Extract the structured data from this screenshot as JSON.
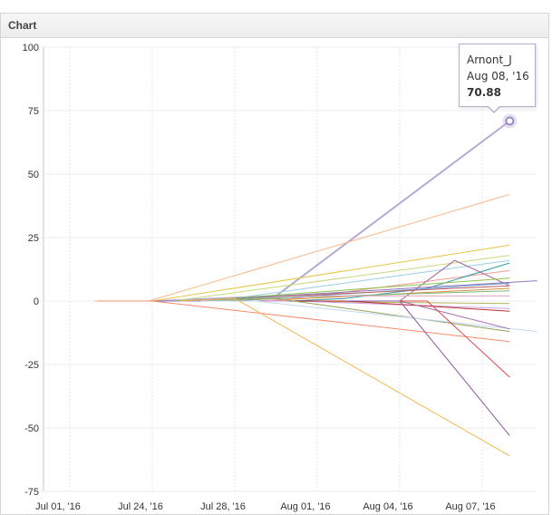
{
  "panel": {
    "title": "Chart"
  },
  "chart_data": {
    "type": "line",
    "title": "",
    "xlabel": "",
    "ylabel": "",
    "ylim": [
      -75,
      100
    ],
    "yticks": [
      100,
      75,
      50,
      25,
      0,
      -25,
      -50,
      -75
    ],
    "xticks": [
      "Jul 01, '16",
      "Jul 24, '16",
      "Jul 28, '16",
      "Aug 01, '16",
      "Aug 04, '16",
      "Aug 07, '16"
    ],
    "grid": true,
    "legend": "none",
    "series": [
      {
        "name": "Arnont_J",
        "color": "#b7a9d4",
        "width": 2,
        "points": [
          [
            "Jul 30, '16",
            2
          ],
          [
            "Aug 08, '16",
            70.88
          ]
        ]
      },
      {
        "color": "#f9b78a",
        "points": [
          [
            "Jul 23, '16",
            0
          ],
          [
            "Aug 08, '16",
            42
          ]
        ]
      },
      {
        "color": "#e8c54a",
        "points": [
          [
            "Jul 24, '16",
            0
          ],
          [
            "Aug 08, '16",
            22
          ]
        ]
      },
      {
        "color": "#c6d97c",
        "points": [
          [
            "Jul 25, '16",
            0
          ],
          [
            "Aug 08, '16",
            18
          ]
        ]
      },
      {
        "color": "#9ad0e6",
        "points": [
          [
            "Jul 27, '16",
            0
          ],
          [
            "Aug 08, '16",
            16
          ]
        ]
      },
      {
        "color": "#f19a8f",
        "points": [
          [
            "Jul 30, '16",
            0
          ],
          [
            "Aug 08, '16",
            12
          ]
        ]
      },
      {
        "color": "#2e9aa6",
        "points": [
          [
            "Aug 02, '16",
            1
          ],
          [
            "Aug 05, '16",
            5
          ],
          [
            "Aug 08, '16",
            15
          ]
        ]
      },
      {
        "color": "#a35fa0",
        "points": [
          [
            "Aug 04, '16",
            0
          ],
          [
            "Aug 06, '16",
            16
          ],
          [
            "Aug 08, '16",
            6
          ]
        ]
      },
      {
        "color": "#8bc34a",
        "points": [
          [
            "Jul 26, '16",
            0
          ],
          [
            "Aug 08, '16",
            9
          ]
        ]
      },
      {
        "color": "#6a9fd1",
        "points": [
          [
            "Jul 28, '16",
            0
          ],
          [
            "Aug 08, '16",
            7
          ]
        ]
      },
      {
        "color": "#c06060",
        "points": [
          [
            "Jul 28, '16",
            1
          ],
          [
            "Aug 08, '16",
            6
          ]
        ]
      },
      {
        "color": "#d98e3c",
        "points": [
          [
            "Jul 29, '16",
            0
          ],
          [
            "Aug 08, '16",
            5
          ]
        ]
      },
      {
        "color": "#8e79b8",
        "points": [
          [
            "Jul 26, '16",
            0
          ],
          [
            "Aug 09, '16",
            8
          ]
        ]
      },
      {
        "color": "#7fb77e",
        "points": [
          [
            "Jul 29, '16",
            1
          ],
          [
            "Aug 08, '16",
            4
          ]
        ]
      },
      {
        "color": "#e0a3c0",
        "points": [
          [
            "Aug 01, '16",
            2
          ],
          [
            "Aug 08, '16",
            2
          ]
        ]
      },
      {
        "color": "#b5b55c",
        "points": [
          [
            "Jul 30, '16",
            0
          ],
          [
            "Aug 08, '16",
            -1
          ]
        ]
      },
      {
        "color": "#c9a0dc",
        "points": [
          [
            "Jul 31, '16",
            0
          ],
          [
            "Aug 08, '16",
            -3
          ]
        ]
      },
      {
        "color": "#c03030",
        "points": [
          [
            "Aug 02, '16",
            0
          ],
          [
            "Aug 08, '16",
            -4
          ]
        ]
      },
      {
        "color": "#95a25a",
        "points": [
          [
            "Jul 30, '16",
            1
          ],
          [
            "Aug 08, '16",
            -12
          ]
        ]
      },
      {
        "color": "#c2d8ef",
        "points": [
          [
            "Jul 29, '16",
            0
          ],
          [
            "Aug 09, '16",
            -12
          ]
        ]
      },
      {
        "color": "#a569a8",
        "points": [
          [
            "Aug 04, '16",
            0
          ],
          [
            "Aug 08, '16",
            -11
          ]
        ]
      },
      {
        "color": "#f28c6b",
        "points": [
          [
            "Jul 24, '16",
            0
          ],
          [
            "Aug 08, '16",
            -16
          ]
        ]
      },
      {
        "color": "#d94a4a",
        "points": [
          [
            "Aug 05, '16",
            0
          ],
          [
            "Aug 08, '16",
            -30
          ]
        ]
      },
      {
        "color": "#8a5aa0",
        "points": [
          [
            "Aug 04, '16",
            0
          ],
          [
            "Aug 08, '16",
            -53
          ]
        ]
      },
      {
        "color": "#f2b84b",
        "points": [
          [
            "Jul 28, '16",
            1
          ],
          [
            "Aug 08, '16",
            -61
          ]
        ]
      }
    ],
    "tooltip": {
      "series": "Arnont_J",
      "date": "Aug 08, '16",
      "value": "70.88"
    }
  }
}
